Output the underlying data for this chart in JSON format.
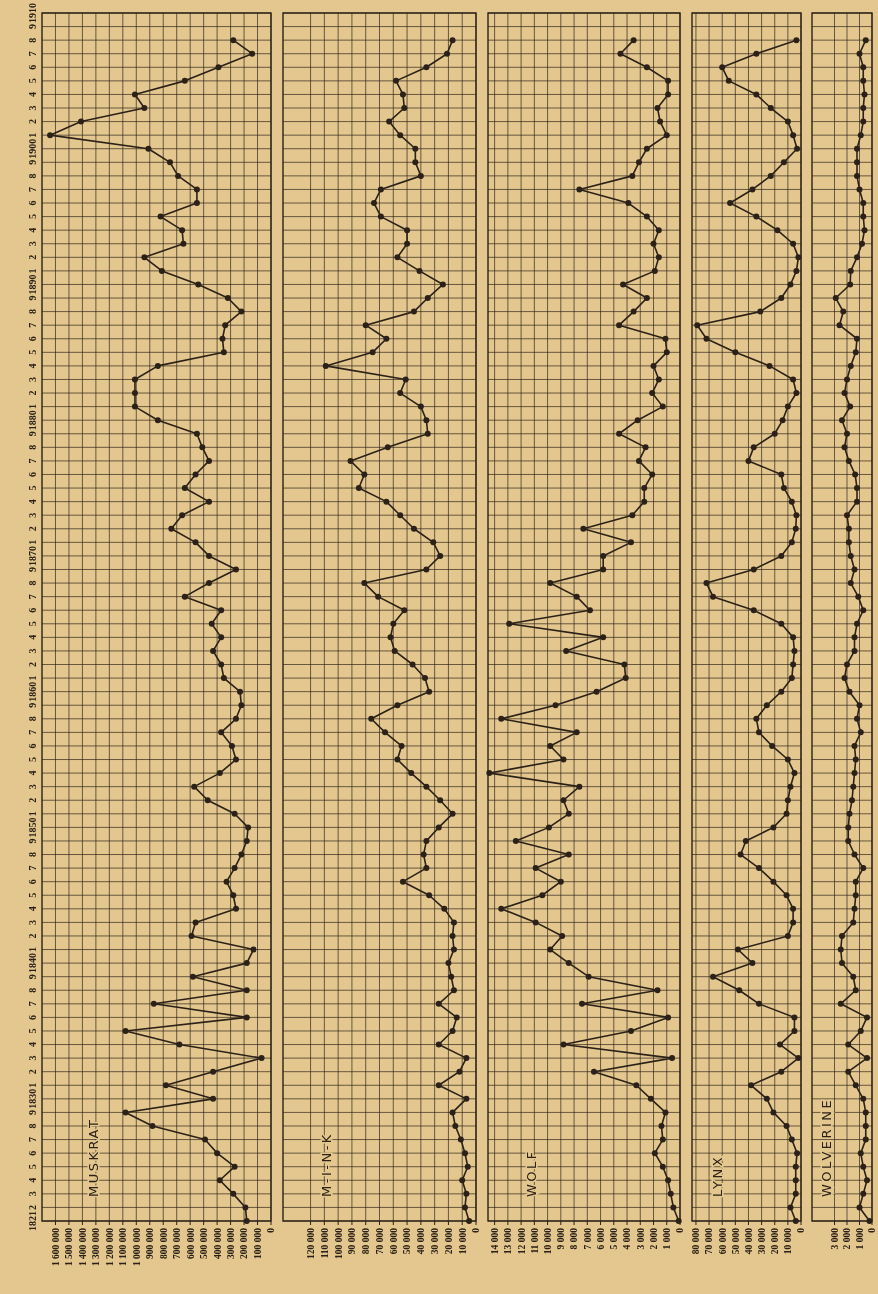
{
  "chart_data": [
    {
      "type": "line",
      "orientation": "horizontal",
      "title": "MUSKRAT",
      "grid": true,
      "marker": "circle",
      "line_style": "solid",
      "color": "#2b2118",
      "categories": [
        "1910",
        "9",
        "8",
        "7",
        "6",
        "5",
        "4",
        "3",
        "2",
        "1",
        "1900",
        "9",
        "8",
        "7",
        "6",
        "5",
        "4",
        "3",
        "2",
        "1",
        "1890",
        "9",
        "8",
        "7",
        "6",
        "5",
        "4",
        "3",
        "2",
        "1",
        "1880",
        "9",
        "8",
        "7",
        "6",
        "5",
        "4",
        "3",
        "2",
        "1",
        "1870",
        "9",
        "8",
        "7",
        "6",
        "5",
        "4",
        "3",
        "2",
        "1",
        "1860",
        "9",
        "8",
        "7",
        "6",
        "5",
        "4",
        "3",
        "2",
        "1",
        "1850",
        "9",
        "8",
        "7",
        "6",
        "5",
        "4",
        "3",
        "2",
        "1",
        "1840",
        "9",
        "8",
        "7",
        "6",
        "5",
        "4",
        "3",
        "2",
        "1",
        "1830",
        "9",
        "8",
        "7",
        "6",
        "5",
        "4",
        "3",
        "2",
        "1821"
      ],
      "xlim": [
        1700000,
        0
      ],
      "xticks": [
        {
          "value": 0,
          "label": "0"
        },
        {
          "value": 100000,
          "label": "100 000"
        },
        {
          "value": 200000,
          "label": "200 000"
        },
        {
          "value": 300000,
          "label": "300 000"
        },
        {
          "value": 400000,
          "label": "400 000"
        },
        {
          "value": 500000,
          "label": "500 000"
        },
        {
          "value": 600000,
          "label": "600 000"
        },
        {
          "value": 700000,
          "label": "700 000"
        },
        {
          "value": 800000,
          "label": "800 000"
        },
        {
          "value": 900000,
          "label": "900 000"
        },
        {
          "value": 1000000,
          "label": "1 000 000"
        },
        {
          "value": 1100000,
          "label": "1 100 000"
        },
        {
          "value": 1200000,
          "label": "1 200 000"
        },
        {
          "value": 1300000,
          "label": "1 300 000"
        },
        {
          "value": 1400000,
          "label": "1 400 000"
        },
        {
          "value": 1500000,
          "label": "1 500 000"
        },
        {
          "value": 1600000,
          "label": "1 600 000"
        }
      ],
      "values": [
        null,
        null,
        280000,
        140000,
        390000,
        640000,
        1010000,
        940000,
        1410000,
        1640000,
        910000,
        750000,
        690000,
        550000,
        550000,
        820000,
        660000,
        650000,
        940000,
        810000,
        540000,
        320000,
        220000,
        340000,
        360000,
        350000,
        840000,
        1010000,
        1010000,
        1010000,
        840000,
        550000,
        510000,
        460000,
        560000,
        640000,
        460000,
        660000,
        740000,
        560000,
        460000,
        260000,
        460000,
        640000,
        370000,
        440000,
        370000,
        430000,
        370000,
        350000,
        230000,
        220000,
        260000,
        370000,
        290000,
        260000,
        380000,
        570000,
        470000,
        270000,
        170000,
        180000,
        220000,
        270000,
        330000,
        280000,
        260000,
        560000,
        590000,
        130000,
        180000,
        580000,
        180000,
        870000,
        180000,
        1080000,
        680000,
        70000,
        430000,
        780000,
        430000,
        1080000,
        880000,
        490000,
        400000,
        270000,
        380000,
        280000,
        190000,
        180000
      ]
    },
    {
      "type": "line",
      "orientation": "horizontal",
      "title": "M-I-N-K",
      "grid": true,
      "marker": "circle",
      "line_style": "solid",
      "color": "#2b2118",
      "tick_labels": "x",
      "categories": [
        "1910",
        "9",
        "8",
        "7",
        "6",
        "5",
        "4",
        "3",
        "2",
        "1",
        "1900",
        "9",
        "8",
        "7",
        "6",
        "5",
        "4",
        "3",
        "2",
        "1",
        "1890",
        "9",
        "8",
        "7",
        "6",
        "5",
        "4",
        "3",
        "2",
        "1",
        "1880",
        "9",
        "8",
        "7",
        "6",
        "5",
        "4",
        "3",
        "2",
        "1",
        "1870",
        "9",
        "8",
        "7",
        "6",
        "5",
        "4",
        "3",
        "2",
        "1",
        "1860",
        "9",
        "8",
        "7",
        "6",
        "5",
        "4",
        "3",
        "2",
        "1",
        "1850",
        "9",
        "8",
        "7",
        "6",
        "5",
        "4",
        "3",
        "2",
        "1",
        "1840",
        "9",
        "8",
        "7",
        "6",
        "5",
        "4",
        "3",
        "2",
        "1",
        "1830",
        "9",
        "8",
        "7",
        "6",
        "5",
        "4",
        "3",
        "2",
        "1821"
      ],
      "xlim": [
        140000,
        0
      ],
      "xticks": [
        {
          "value": 0,
          "label": "0"
        },
        {
          "value": 10000,
          "label": "10 000"
        },
        {
          "value": 20000,
          "label": "20 000"
        },
        {
          "value": 30000,
          "label": "30 000"
        },
        {
          "value": 40000,
          "label": "40 000"
        },
        {
          "value": 50000,
          "label": "50 000"
        },
        {
          "value": 60000,
          "label": "60 000"
        },
        {
          "value": 70000,
          "label": "70 000"
        },
        {
          "value": 80000,
          "label": "80 000"
        },
        {
          "value": 90000,
          "label": "90 000"
        },
        {
          "value": 100000,
          "label": "100 000"
        },
        {
          "value": 110000,
          "label": "110 000"
        },
        {
          "value": 120000,
          "label": "120 000"
        }
      ],
      "values": [
        null,
        null,
        17000,
        21000,
        36000,
        58000,
        53000,
        52000,
        63000,
        55000,
        44000,
        44000,
        40000,
        69000,
        74000,
        69000,
        50000,
        50000,
        57000,
        41000,
        24000,
        35000,
        45000,
        80000,
        65000,
        75000,
        109000,
        51000,
        55000,
        40000,
        36000,
        35000,
        64000,
        91000,
        81000,
        85000,
        65000,
        55000,
        45000,
        31000,
        26000,
        36000,
        81000,
        71000,
        52000,
        60000,
        62000,
        59000,
        46000,
        37000,
        34000,
        57000,
        76000,
        66000,
        54000,
        57000,
        47000,
        36000,
        26000,
        17000,
        27000,
        36000,
        38000,
        36000,
        53000,
        34000,
        23000,
        16000,
        17000,
        16000,
        20000,
        18000,
        16000,
        27000,
        14000,
        17000,
        27000,
        7000,
        12000,
        27000,
        7000,
        17000,
        15000,
        11000,
        8000,
        6000,
        10000,
        7000,
        8000,
        5000
      ]
    },
    {
      "type": "line",
      "orientation": "horizontal",
      "title": "WOLF",
      "grid": true,
      "marker": "circle",
      "line_style": "solid",
      "color": "#2b2118",
      "tick_labels": "x",
      "categories": [
        "1910",
        "9",
        "8",
        "7",
        "6",
        "5",
        "4",
        "3",
        "2",
        "1",
        "1900",
        "9",
        "8",
        "7",
        "6",
        "5",
        "4",
        "3",
        "2",
        "1",
        "1890",
        "9",
        "8",
        "7",
        "6",
        "5",
        "4",
        "3",
        "2",
        "1",
        "1880",
        "9",
        "8",
        "7",
        "6",
        "5",
        "4",
        "3",
        "2",
        "1",
        "1870",
        "9",
        "8",
        "7",
        "6",
        "5",
        "4",
        "3",
        "2",
        "1",
        "1860",
        "9",
        "8",
        "7",
        "6",
        "5",
        "4",
        "3",
        "2",
        "1",
        "1850",
        "9",
        "8",
        "7",
        "6",
        "5",
        "4",
        "3",
        "2",
        "1",
        "1840",
        "9",
        "8",
        "7",
        "6",
        "5",
        "4",
        "3",
        "2",
        "1",
        "1830",
        "9",
        "8",
        "7",
        "6",
        "5",
        "4",
        "3",
        "2",
        "1821"
      ],
      "xlim": [
        14500,
        0
      ],
      "xticks": [
        {
          "value": 0,
          "label": "0"
        },
        {
          "value": 1000,
          "label": "1 000"
        },
        {
          "value": 2000,
          "label": "2 000"
        },
        {
          "value": 3000,
          "label": "3 000"
        },
        {
          "value": 4000,
          "label": "4 000"
        },
        {
          "value": 5000,
          "label": "5 000"
        },
        {
          "value": 6000,
          "label": "6 000"
        },
        {
          "value": 7000,
          "label": "7 000"
        },
        {
          "value": 8000,
          "label": "8 000"
        },
        {
          "value": 9000,
          "label": "9 000"
        },
        {
          "value": 10000,
          "label": "10 000"
        },
        {
          "value": 11000,
          "label": "11 000"
        },
        {
          "value": 12000,
          "label": "12 000"
        },
        {
          "value": 13000,
          "label": "13 000"
        },
        {
          "value": 14000,
          "label": "14 000"
        }
      ],
      "values": [
        null,
        null,
        3500,
        4500,
        2500,
        900,
        900,
        1700,
        1500,
        1000,
        2500,
        3100,
        3600,
        7600,
        3900,
        2500,
        1600,
        2000,
        1600,
        1900,
        4300,
        2500,
        3500,
        4600,
        1100,
        1000,
        2000,
        1600,
        2100,
        1300,
        3200,
        4600,
        2600,
        3100,
        2100,
        2700,
        2700,
        3600,
        7300,
        3700,
        5800,
        5800,
        9800,
        7800,
        6800,
        12900,
        5800,
        8600,
        4200,
        4100,
        6300,
        9400,
        13500,
        7800,
        9800,
        8800,
        14400,
        7600,
        8800,
        8400,
        9900,
        12400,
        8400,
        10900,
        9000,
        10400,
        13500,
        10900,
        8900,
        9800,
        8400,
        6900,
        1700,
        7400,
        900,
        3700,
        8800,
        600,
        6500,
        3300,
        2200,
        1100,
        1400,
        1300,
        1900,
        1300,
        900,
        700,
        500,
        100
      ]
    },
    {
      "type": "line",
      "orientation": "horizontal",
      "title": "LYNX",
      "grid": true,
      "marker": "circle",
      "line_style": "solid",
      "color": "#2b2118",
      "tick_labels": "x",
      "categories": [
        "1910",
        "9",
        "8",
        "7",
        "6",
        "5",
        "4",
        "3",
        "2",
        "1",
        "1900",
        "9",
        "8",
        "7",
        "6",
        "5",
        "4",
        "3",
        "2",
        "1",
        "1890",
        "9",
        "8",
        "7",
        "6",
        "5",
        "4",
        "3",
        "2",
        "1",
        "1880",
        "9",
        "8",
        "7",
        "6",
        "5",
        "4",
        "3",
        "2",
        "1",
        "1870",
        "9",
        "8",
        "7",
        "6",
        "5",
        "4",
        "3",
        "2",
        "1",
        "1860",
        "9",
        "8",
        "7",
        "6",
        "5",
        "4",
        "3",
        "2",
        "1",
        "1850",
        "9",
        "8",
        "7",
        "6",
        "5",
        "4",
        "3",
        "2",
        "1",
        "1840",
        "9",
        "8",
        "7",
        "6",
        "5",
        "4",
        "3",
        "2",
        "1",
        "1830",
        "9",
        "8",
        "7",
        "6",
        "5",
        "4",
        "3",
        "2",
        "1821"
      ],
      "xlim": [
        83000,
        0
      ],
      "xticks": [
        {
          "value": 0,
          "label": "0"
        },
        {
          "value": 10000,
          "label": "10 000"
        },
        {
          "value": 20000,
          "label": "20 000"
        },
        {
          "value": 30000,
          "label": "30 000"
        },
        {
          "value": 40000,
          "label": "40 000"
        },
        {
          "value": 50000,
          "label": "50 000"
        },
        {
          "value": 60000,
          "label": "60 000"
        },
        {
          "value": 70000,
          "label": "70 000"
        },
        {
          "value": 80000,
          "label": "80 000"
        }
      ],
      "values": [
        null,
        null,
        3500,
        34000,
        60000,
        55000,
        34000,
        23000,
        10000,
        6000,
        3000,
        13000,
        23000,
        37000,
        54000,
        34000,
        18000,
        6000,
        2000,
        3500,
        8000,
        15000,
        31000,
        79000,
        72000,
        50000,
        24000,
        6000,
        3500,
        10000,
        14000,
        20000,
        36000,
        40000,
        15000,
        13000,
        7000,
        3500,
        4000,
        7000,
        15000,
        36000,
        72000,
        67000,
        36000,
        15000,
        6000,
        5000,
        6000,
        7000,
        15000,
        26000,
        34000,
        32000,
        22000,
        10000,
        5000,
        8000,
        10000,
        11000,
        21000,
        42000,
        46000,
        32000,
        21000,
        11000,
        6000,
        6000,
        10000,
        48000,
        37000,
        67000,
        47000,
        32000,
        5000,
        5000,
        16000,
        2000,
        15000,
        38000,
        26000,
        21000,
        11000,
        7000,
        3000,
        4000,
        4000,
        4000,
        8000,
        4000
      ]
    },
    {
      "type": "line",
      "orientation": "horizontal",
      "title": "WOLVERINE",
      "grid": true,
      "marker": "circle",
      "line_style": "solid",
      "color": "#2b2118",
      "tick_labels": "x",
      "categories": [
        "1910",
        "9",
        "8",
        "7",
        "6",
        "5",
        "4",
        "3",
        "2",
        "1",
        "1900",
        "9",
        "8",
        "7",
        "6",
        "5",
        "4",
        "3",
        "2",
        "1",
        "1890",
        "9",
        "8",
        "7",
        "6",
        "5",
        "4",
        "3",
        "2",
        "1",
        "1880",
        "9",
        "8",
        "7",
        "6",
        "5",
        "4",
        "3",
        "2",
        "1",
        "1870",
        "9",
        "8",
        "7",
        "6",
        "5",
        "4",
        "3",
        "2",
        "1",
        "1860",
        "9",
        "8",
        "7",
        "6",
        "5",
        "4",
        "3",
        "2",
        "1",
        "1850",
        "9",
        "8",
        "7",
        "6",
        "5",
        "4",
        "3",
        "2",
        "1",
        "1840",
        "9",
        "8",
        "7",
        "6",
        "5",
        "4",
        "3",
        "2",
        "1",
        "1830",
        "9",
        "8",
        "7",
        "6",
        "5",
        "4",
        "3",
        "2",
        "1821"
      ],
      "xlim": [
        4800,
        0
      ],
      "xticks": [
        {
          "value": 0,
          "label": "0"
        },
        {
          "value": 1000,
          "label": "1 000"
        },
        {
          "value": 2000,
          "label": "2 000"
        },
        {
          "value": 3000,
          "label": "3 000"
        }
      ],
      "values": [
        null,
        null,
        500,
        1000,
        700,
        700,
        600,
        700,
        700,
        900,
        1200,
        1200,
        1200,
        1000,
        700,
        700,
        600,
        800,
        1200,
        1700,
        1750,
        2900,
        2300,
        2600,
        1200,
        1300,
        1700,
        2000,
        2200,
        1750,
        2400,
        2000,
        2200,
        1850,
        1350,
        1200,
        1200,
        2000,
        1850,
        1850,
        1700,
        1400,
        1700,
        1100,
        700,
        1200,
        1400,
        1400,
        2000,
        2200,
        1800,
        1000,
        1200,
        900,
        1400,
        1300,
        1400,
        1500,
        1600,
        1800,
        1900,
        1900,
        1400,
        700,
        1300,
        1300,
        1400,
        1500,
        2400,
        2500,
        2400,
        1500,
        1300,
        2500,
        400,
        900,
        1900,
        400,
        1900,
        1300,
        700,
        500,
        500,
        500,
        900,
        700,
        400,
        700,
        1000,
        200
      ]
    }
  ]
}
